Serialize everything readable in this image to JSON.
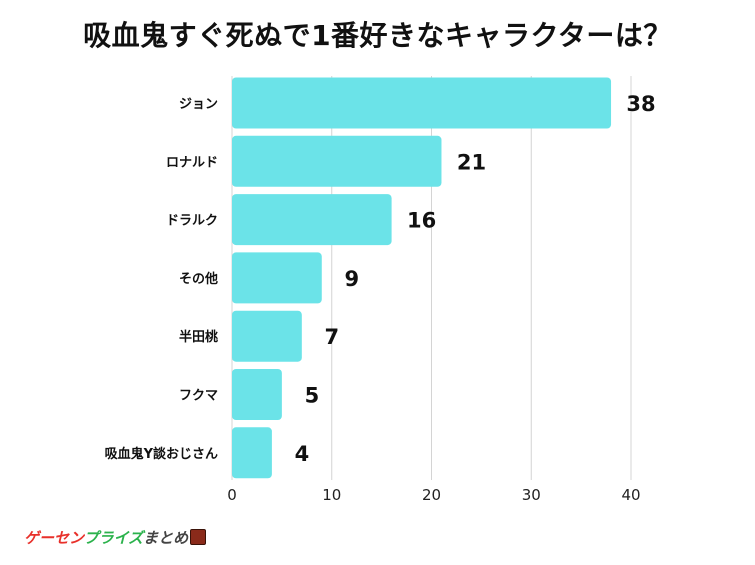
{
  "chart_data": {
    "type": "bar",
    "orientation": "horizontal",
    "title": "吸血鬼すぐ死ぬで1番好きなキャラクターは？",
    "categories": [
      "ジョン",
      "ロナルド",
      "ドラルク",
      "その他",
      "半田桃",
      "フクマ",
      "吸血鬼Y談おじさん"
    ],
    "values": [
      38,
      21,
      16,
      9,
      7,
      5,
      4
    ],
    "xlim": [
      0,
      40
    ],
    "xticks": [
      "0",
      "10",
      "20",
      "30",
      "40"
    ],
    "grid": true,
    "bar_color": "#6be3e8"
  },
  "footer": {
    "logo_text_1": "ゲーセン",
    "logo_text_2": "プライズ",
    "logo_text_3": "まとめ"
  }
}
